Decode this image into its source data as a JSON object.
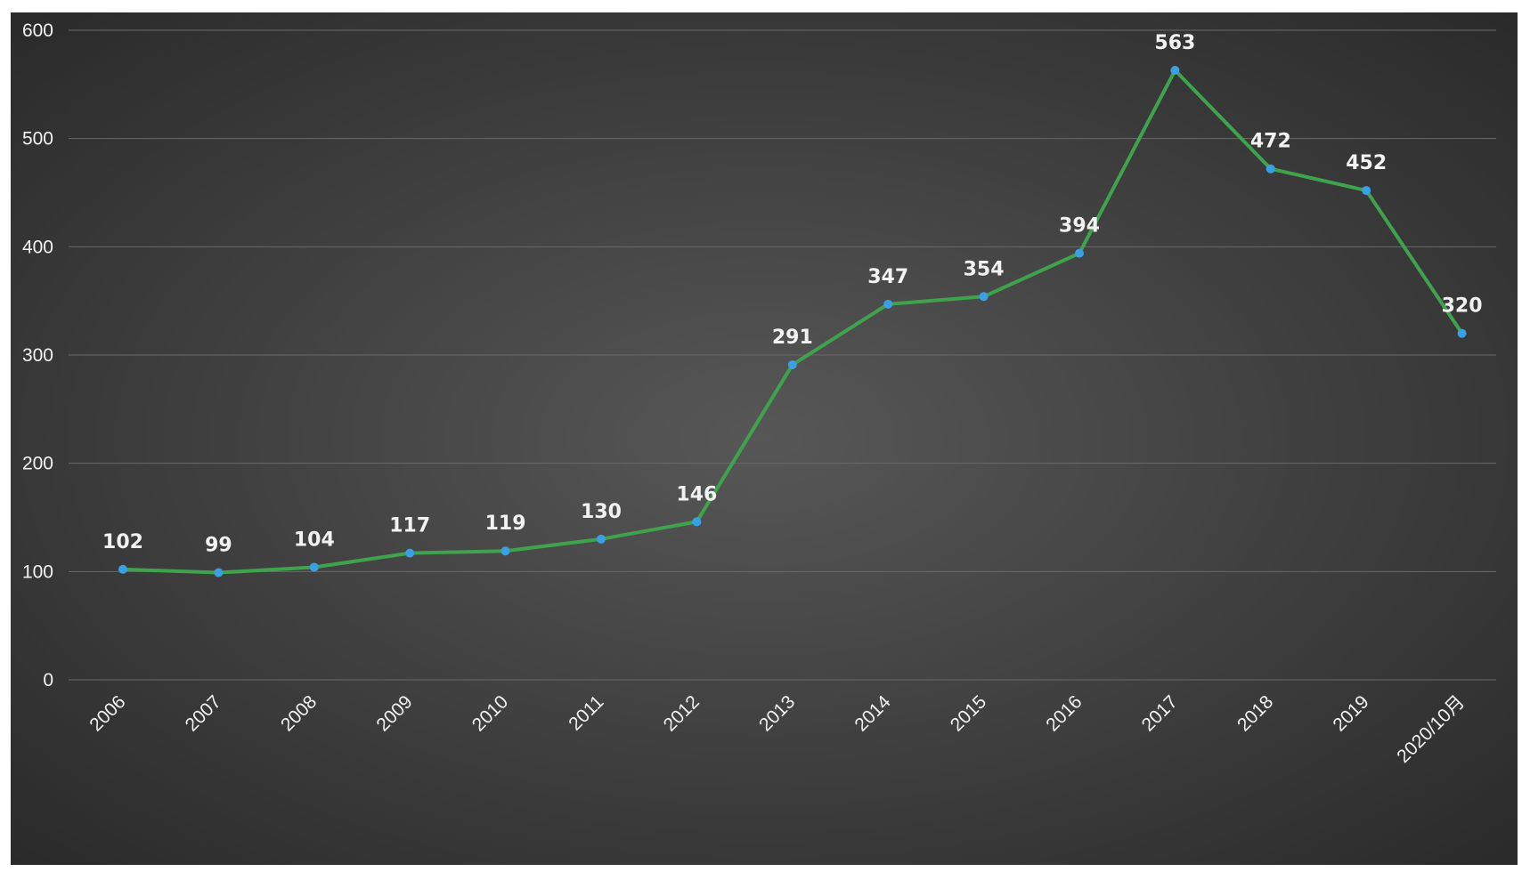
{
  "colors": {
    "line": "#3fa34d",
    "marker": "#3aa0e6",
    "text": "#f2f2f2",
    "grid": "#6a6a6a"
  },
  "chart_data": {
    "type": "line",
    "title": "",
    "xlabel": "",
    "ylabel": "",
    "categories": [
      "2006",
      "2007",
      "2008",
      "2009",
      "2010",
      "2011",
      "2012",
      "2013",
      "2014",
      "2015",
      "2016",
      "2017",
      "2018",
      "2019",
      "2020/10月"
    ],
    "series": [
      {
        "values": [
          102,
          99,
          104,
          117,
          119,
          130,
          146,
          291,
          347,
          354,
          394,
          563,
          472,
          452,
          320
        ]
      }
    ],
    "ylim": [
      0,
      600
    ],
    "y_ticks": [
      "0",
      "100",
      "200",
      "300",
      "400",
      "500",
      "600"
    ],
    "grid": true,
    "legend": "none",
    "data_labels": true
  }
}
